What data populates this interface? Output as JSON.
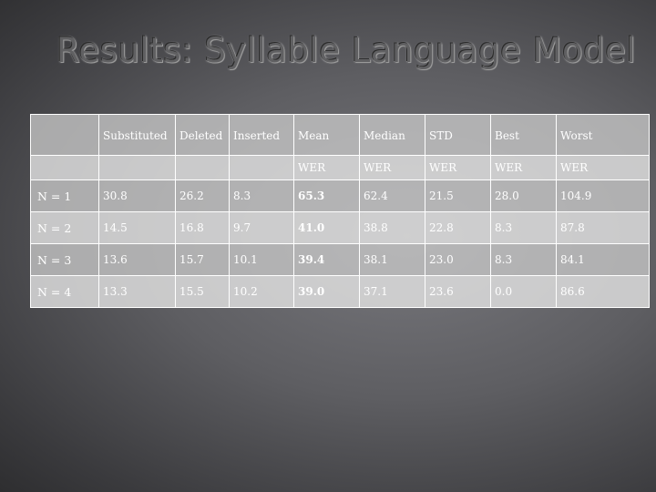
{
  "title": "Results: Syllable Language Model",
  "table": {
    "header_top": [
      "",
      "Substituted",
      "Deleted",
      "Inserted",
      "Mean",
      "Median",
      "STD",
      "Best",
      "Worst"
    ],
    "header_sub": [
      "",
      "",
      "",
      "",
      "WER",
      "WER",
      "WER",
      "WER",
      "WER"
    ],
    "rows": [
      [
        "N = 1",
        "30.8",
        "26.2",
        "8.3",
        "65.3",
        "62.4",
        "21.5",
        "28.0",
        "104.9"
      ],
      [
        "N = 2",
        "14.5",
        "16.8",
        "9.7",
        "41.0",
        "38.8",
        "22.8",
        "8.3",
        "87.8"
      ],
      [
        "N = 3",
        "13.6",
        "15.7",
        "10.1",
        "39.4",
        "38.1",
        "23.0",
        "8.3",
        "84.1"
      ],
      [
        "N = 4",
        "13.3",
        "15.5",
        "10.2",
        "39.0",
        "37.1",
        "23.6",
        "0.0",
        "86.6"
      ]
    ],
    "bold_column": "Mean"
  }
}
